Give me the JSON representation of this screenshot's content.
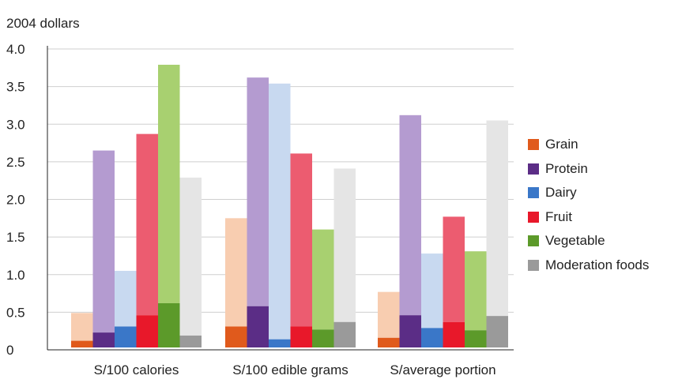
{
  "chart_data": {
    "type": "bar",
    "title": "",
    "ylabel": "2004 dollars",
    "xlabel": "",
    "ylim": [
      0,
      4.0
    ],
    "yticks": [
      "0",
      "0.5",
      "1.0",
      "1.5",
      "2.0",
      "2.5",
      "3.0",
      "3.5",
      "4.0"
    ],
    "grid": true,
    "legend_position": "right",
    "categories": [
      "S/100 calories",
      "S/100 edible grams",
      "S/average portion"
    ],
    "series": [
      {
        "name": "Grain",
        "dark_color": "#e05a1c",
        "light_color": "#f8cdb0",
        "ranges": [
          [
            0.12,
            0.49
          ],
          [
            0.31,
            1.75
          ],
          [
            0.16,
            0.77
          ]
        ]
      },
      {
        "name": "Protein",
        "dark_color": "#5b2d86",
        "light_color": "#b49bd0",
        "ranges": [
          [
            0.23,
            2.65
          ],
          [
            0.58,
            3.62
          ],
          [
            0.46,
            3.12
          ]
        ]
      },
      {
        "name": "Dairy",
        "dark_color": "#3a77c8",
        "light_color": "#c8d9f0",
        "ranges": [
          [
            0.31,
            1.05
          ],
          [
            0.14,
            3.54
          ],
          [
            0.29,
            1.28
          ]
        ]
      },
      {
        "name": "Fruit",
        "dark_color": "#e8182a",
        "light_color": "#ec5c70",
        "ranges": [
          [
            0.46,
            2.87
          ],
          [
            0.31,
            2.61
          ],
          [
            0.37,
            1.77
          ]
        ]
      },
      {
        "name": "Vegetable",
        "dark_color": "#5c9a2a",
        "light_color": "#a8d070",
        "ranges": [
          [
            0.62,
            3.79
          ],
          [
            0.27,
            1.6
          ],
          [
            0.26,
            1.31
          ]
        ]
      },
      {
        "name": "Moderation foods",
        "dark_color": "#9a9a9a",
        "light_color": "#e5e5e5",
        "ranges": [
          [
            0.19,
            2.29
          ],
          [
            0.37,
            2.41
          ],
          [
            0.45,
            3.05
          ]
        ]
      }
    ]
  }
}
